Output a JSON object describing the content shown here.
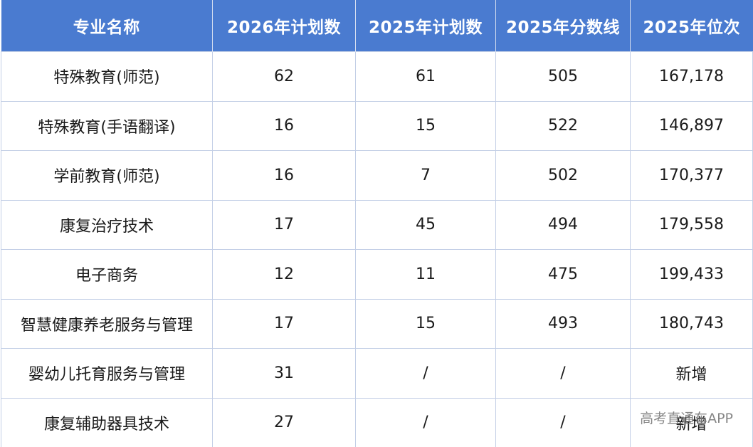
{
  "table": {
    "headers": [
      "专业名称",
      "2026年计划数",
      "2025年计划数",
      "2025年分数线",
      "2025年位次"
    ],
    "rows": [
      [
        "特殊教育(师范)",
        "62",
        "61",
        "505",
        "167,178"
      ],
      [
        "特殊教育(手语翻译)",
        "16",
        "15",
        "522",
        "146,897"
      ],
      [
        "学前教育(师范)",
        "16",
        "7",
        "502",
        "170,377"
      ],
      [
        "康复治疗技术",
        "17",
        "45",
        "494",
        "179,558"
      ],
      [
        "电子商务",
        "12",
        "11",
        "475",
        "199,433"
      ],
      [
        "智慧健康养老服务与管理",
        "17",
        "15",
        "493",
        "180,743"
      ],
      [
        "婴幼儿托育服务与管理",
        "31",
        "/",
        "/",
        "新增"
      ],
      [
        "康复辅助器具技术",
        "27",
        "/",
        "/",
        "新增"
      ]
    ]
  },
  "watermark": "高考直通车APP",
  "colors": {
    "header_bg": "#4a7bd0",
    "header_text": "#ffffff",
    "grid_line": "#c3cfe6"
  }
}
